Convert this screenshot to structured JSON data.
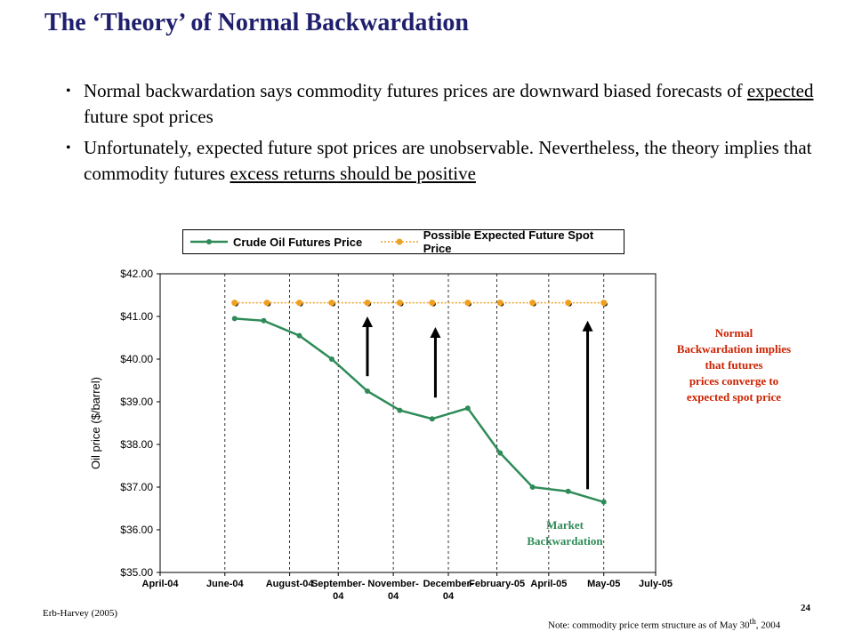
{
  "slide": {
    "title": "The ‘Theory’ of Normal Backwardation",
    "bullets": [
      {
        "pre": "Normal backwardation says commodity futures prices are downward biased forecasts of ",
        "u": "expected",
        "post": " future spot prices"
      },
      {
        "pre": "Unfortunately, expected future spot prices are unobservable. Nevertheless, the theory implies that commodity futures ",
        "u": "excess returns should be positive",
        "post": ""
      }
    ],
    "bullet_glyph": "•"
  },
  "annotations": {
    "normal": [
      "Normal",
      "Backwardation implies",
      "that futures",
      "prices converge to",
      "expected spot price"
    ],
    "market": [
      "Market",
      "Backwardation"
    ],
    "normal_color": "#cc2200",
    "market_color": "#2e8b57"
  },
  "footer": {
    "source": "Erb-Harvey (2005)",
    "page": "24",
    "note_pre": "Note: commodity price term structure as of May 30",
    "note_sup": "th",
    "note_post": ", 2004"
  },
  "chart_data": {
    "type": "line",
    "ylabel": "Oil price ($/barrel)",
    "xlabel": "",
    "ylim": [
      35,
      42
    ],
    "y_ticks": [
      "$35.00",
      "$36.00",
      "$37.00",
      "$38.00",
      "$39.00",
      "$40.00",
      "$41.00",
      "$42.00"
    ],
    "x_ticks": [
      [
        "April-04"
      ],
      [
        "June-04"
      ],
      [
        "August-04"
      ],
      [
        "September-",
        "04"
      ],
      [
        "November-",
        "04"
      ],
      [
        "December-",
        "04"
      ],
      [
        "February-05"
      ],
      [
        "April-05"
      ],
      [
        "May-05"
      ],
      [
        "July-05"
      ]
    ],
    "x_tick_positions": [
      0,
      2,
      4,
      5.5,
      7.2,
      8.9,
      10.4,
      12,
      13.7,
      15.3
    ],
    "xlim": [
      0,
      15.3
    ],
    "grid": "vertical",
    "legend_position": "top",
    "series": [
      {
        "name": "Crude Oil Futures Price",
        "color": "#2e8b57",
        "x": [
          2.3,
          3.2,
          4.3,
          5.3,
          6.4,
          7.4,
          8.4,
          9.5,
          10.5,
          11.5,
          12.6,
          13.7
        ],
        "values": [
          40.95,
          40.9,
          40.55,
          40.0,
          39.25,
          38.8,
          38.6,
          38.85,
          37.8,
          37.0,
          36.9,
          36.65
        ]
      },
      {
        "name": "Possible Expected Future Spot Price",
        "color": "#f0a020",
        "x": [
          2.3,
          3.3,
          4.3,
          5.3,
          6.4,
          7.4,
          8.4,
          9.5,
          10.5,
          11.5,
          12.6,
          13.7
        ],
        "values": [
          41.32,
          41.32,
          41.32,
          41.32,
          41.32,
          41.32,
          41.32,
          41.32,
          41.32,
          41.32,
          41.32,
          41.32
        ]
      }
    ],
    "arrows": [
      {
        "x": 6.4,
        "from": 39.6,
        "to": 41.0
      },
      {
        "x": 8.5,
        "from": 39.1,
        "to": 40.75
      },
      {
        "x": 13.2,
        "from": 36.95,
        "to": 40.9
      }
    ]
  }
}
